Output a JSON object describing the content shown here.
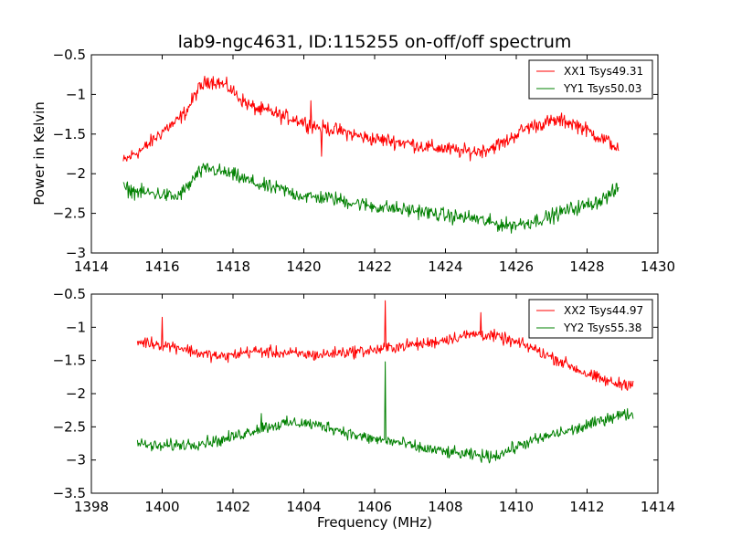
{
  "figure": {
    "title": "lab9-ngc4631, ID:115255 on-off/off spectrum",
    "ylabel": "Power in Kelvin",
    "xlabel": "Frequency (MHz)"
  },
  "chart_data": [
    {
      "type": "line",
      "title": "lab9-ngc4631, ID:115255 on-off/off spectrum",
      "xlabel": "",
      "ylabel": "Power in Kelvin",
      "xlim": [
        1414,
        1430
      ],
      "ylim": [
        -3.0,
        -0.5
      ],
      "xticks": [
        1414,
        1416,
        1418,
        1420,
        1422,
        1424,
        1426,
        1428,
        1430
      ],
      "yticks": [
        -0.5,
        -1.0,
        -1.5,
        -2.0,
        -2.5,
        -3.0
      ],
      "grid": false,
      "legend": "top-right",
      "series": [
        {
          "name": "XX1 Tsys49.31",
          "color": "#ff0000",
          "x": [
            1414.9,
            1415.2,
            1415.5,
            1415.8,
            1416.1,
            1416.4,
            1416.7,
            1417.0,
            1417.3,
            1417.6,
            1417.9,
            1418.2,
            1418.5,
            1418.8,
            1419.1,
            1419.4,
            1419.7,
            1420.0,
            1420.3,
            1420.6,
            1420.9,
            1421.2,
            1421.5,
            1421.8,
            1422.1,
            1422.4,
            1422.7,
            1423.0,
            1423.3,
            1423.6,
            1423.9,
            1424.2,
            1424.5,
            1424.8,
            1425.1,
            1425.4,
            1425.7,
            1426.0,
            1426.3,
            1426.6,
            1426.9,
            1427.2,
            1427.5,
            1427.8,
            1428.1,
            1428.4,
            1428.7,
            1428.9
          ],
          "y": [
            -1.85,
            -1.75,
            -1.68,
            -1.55,
            -1.43,
            -1.35,
            -1.2,
            -0.95,
            -0.82,
            -0.85,
            -0.92,
            -1.05,
            -1.15,
            -1.2,
            -1.22,
            -1.28,
            -1.3,
            -1.35,
            -1.4,
            -1.42,
            -1.45,
            -1.48,
            -1.52,
            -1.55,
            -1.57,
            -1.58,
            -1.6,
            -1.62,
            -1.65,
            -1.67,
            -1.68,
            -1.7,
            -1.72,
            -1.72,
            -1.7,
            -1.65,
            -1.6,
            -1.5,
            -1.42,
            -1.38,
            -1.35,
            -1.33,
            -1.35,
            -1.4,
            -1.48,
            -1.55,
            -1.62,
            -1.7
          ],
          "spikes": [
            {
              "x": 1420.2,
              "y": -1.08
            },
            {
              "x": 1420.5,
              "y": -1.78
            }
          ]
        },
        {
          "name": "YY1 Tsys50.03",
          "color": "#008000",
          "x": [
            1414.9,
            1415.2,
            1415.5,
            1415.8,
            1416.1,
            1416.4,
            1416.7,
            1417.0,
            1417.3,
            1417.6,
            1417.9,
            1418.2,
            1418.5,
            1418.8,
            1419.1,
            1419.4,
            1419.7,
            1420.0,
            1420.3,
            1420.6,
            1420.9,
            1421.2,
            1421.5,
            1421.8,
            1422.1,
            1422.4,
            1422.7,
            1423.0,
            1423.3,
            1423.6,
            1423.9,
            1424.2,
            1424.5,
            1424.8,
            1425.1,
            1425.4,
            1425.7,
            1426.0,
            1426.3,
            1426.6,
            1426.9,
            1427.2,
            1427.5,
            1427.8,
            1428.1,
            1428.4,
            1428.7,
            1428.9
          ],
          "y": [
            -2.18,
            -2.22,
            -2.24,
            -2.25,
            -2.27,
            -2.3,
            -2.18,
            -2.0,
            -1.93,
            -1.97,
            -2.0,
            -2.05,
            -2.1,
            -2.15,
            -2.18,
            -2.2,
            -2.25,
            -2.28,
            -2.3,
            -2.3,
            -2.32,
            -2.35,
            -2.37,
            -2.4,
            -2.42,
            -2.43,
            -2.45,
            -2.46,
            -2.47,
            -2.5,
            -2.52,
            -2.54,
            -2.55,
            -2.56,
            -2.6,
            -2.63,
            -2.65,
            -2.64,
            -2.62,
            -2.58,
            -2.55,
            -2.5,
            -2.45,
            -2.42,
            -2.38,
            -2.33,
            -2.25,
            -2.18
          ],
          "spikes": []
        }
      ]
    },
    {
      "type": "line",
      "title": "",
      "xlabel": "Frequency (MHz)",
      "ylabel": "",
      "xlim": [
        1398,
        1414
      ],
      "ylim": [
        -3.5,
        -0.5
      ],
      "xticks": [
        1398,
        1400,
        1402,
        1404,
        1406,
        1408,
        1410,
        1412,
        1414
      ],
      "yticks": [
        -0.5,
        -1.0,
        -1.5,
        -2.0,
        -2.5,
        -3.0,
        -3.5
      ],
      "grid": false,
      "legend": "top-right",
      "series": [
        {
          "name": "XX2 Tsys44.97",
          "color": "#ff0000",
          "x": [
            1399.3,
            1399.6,
            1399.9,
            1400.2,
            1400.5,
            1400.8,
            1401.1,
            1401.4,
            1401.7,
            1402.0,
            1402.3,
            1402.6,
            1402.9,
            1403.2,
            1403.5,
            1403.8,
            1404.1,
            1404.4,
            1404.7,
            1405.0,
            1405.3,
            1405.6,
            1405.9,
            1406.2,
            1406.5,
            1406.8,
            1407.1,
            1407.4,
            1407.7,
            1408.0,
            1408.3,
            1408.6,
            1408.9,
            1409.2,
            1409.5,
            1409.8,
            1410.1,
            1410.4,
            1410.7,
            1411.0,
            1411.3,
            1411.6,
            1411.9,
            1412.2,
            1412.5,
            1412.8,
            1413.1,
            1413.3
          ],
          "y": [
            -1.22,
            -1.23,
            -1.25,
            -1.28,
            -1.3,
            -1.35,
            -1.4,
            -1.42,
            -1.45,
            -1.42,
            -1.38,
            -1.36,
            -1.37,
            -1.38,
            -1.39,
            -1.4,
            -1.41,
            -1.42,
            -1.4,
            -1.38,
            -1.37,
            -1.36,
            -1.35,
            -1.33,
            -1.3,
            -1.28,
            -1.26,
            -1.25,
            -1.22,
            -1.18,
            -1.15,
            -1.12,
            -1.1,
            -1.12,
            -1.15,
            -1.2,
            -1.25,
            -1.3,
            -1.38,
            -1.45,
            -1.52,
            -1.6,
            -1.68,
            -1.75,
            -1.8,
            -1.85,
            -1.85,
            -1.83
          ],
          "spikes": [
            {
              "x": 1400.0,
              "y": -0.85
            },
            {
              "x": 1406.3,
              "y": -0.6
            },
            {
              "x": 1409.0,
              "y": -0.78
            }
          ]
        },
        {
          "name": "YY2 Tsys55.38",
          "color": "#008000",
          "x": [
            1399.3,
            1399.6,
            1399.9,
            1400.2,
            1400.5,
            1400.8,
            1401.1,
            1401.4,
            1401.7,
            1402.0,
            1402.3,
            1402.6,
            1402.9,
            1403.2,
            1403.5,
            1403.8,
            1404.1,
            1404.4,
            1404.7,
            1405.0,
            1405.3,
            1405.6,
            1405.9,
            1406.2,
            1406.5,
            1406.8,
            1407.1,
            1407.4,
            1407.7,
            1408.0,
            1408.3,
            1408.6,
            1408.9,
            1409.2,
            1409.5,
            1409.8,
            1410.1,
            1410.4,
            1410.7,
            1411.0,
            1411.3,
            1411.6,
            1411.9,
            1412.2,
            1412.5,
            1412.8,
            1413.1,
            1413.3
          ],
          "y": [
            -2.75,
            -2.78,
            -2.8,
            -2.78,
            -2.77,
            -2.76,
            -2.74,
            -2.72,
            -2.7,
            -2.65,
            -2.6,
            -2.55,
            -2.5,
            -2.48,
            -2.45,
            -2.44,
            -2.45,
            -2.48,
            -2.5,
            -2.55,
            -2.6,
            -2.65,
            -2.68,
            -2.7,
            -2.72,
            -2.75,
            -2.8,
            -2.83,
            -2.85,
            -2.88,
            -2.9,
            -2.92,
            -2.93,
            -2.95,
            -2.92,
            -2.85,
            -2.78,
            -2.72,
            -2.68,
            -2.62,
            -2.58,
            -2.55,
            -2.5,
            -2.45,
            -2.38,
            -2.33,
            -2.32,
            -2.3
          ],
          "spikes": [
            {
              "x": 1406.3,
              "y": -1.52
            },
            {
              "x": 1402.8,
              "y": -2.3
            }
          ]
        }
      ]
    }
  ]
}
